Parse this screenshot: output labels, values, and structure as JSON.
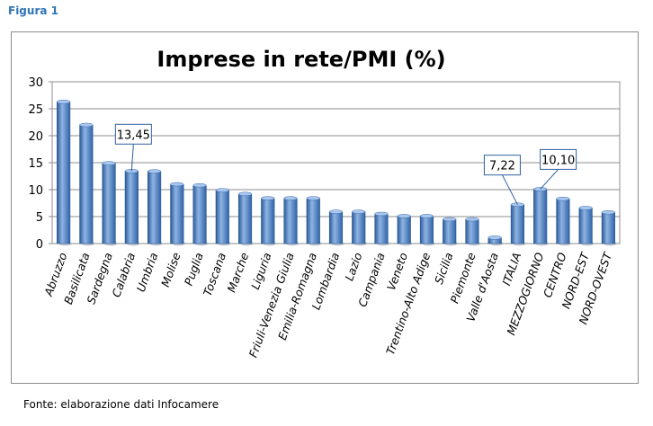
{
  "figure_label": "Figura 1",
  "source_note": "Fonte: elaborazione dati Infocamere",
  "chart_data": {
    "type": "bar",
    "title": "Imprese in rete/PMI (%)",
    "xlabel": "",
    "ylabel": "",
    "ylim": [
      0,
      30
    ],
    "yticks": [
      0,
      5,
      10,
      15,
      20,
      25,
      30
    ],
    "grid": true,
    "legend": "none",
    "bar_color": "#4a7fc1",
    "categories": [
      "Abruzzo",
      "Basilicata",
      "Sardegna",
      "Calabria",
      "Umbria",
      "Molise",
      "Puglia",
      "Toscana",
      "Marche",
      "Liguria",
      "Friuli-Venezia Giulia",
      "Emilia-Romagna",
      "Lombardia",
      "Lazio",
      "Campania",
      "Veneto",
      "Trentino-Alto Adige",
      "Sicilia",
      "Piemonte",
      "Valle d'Aosta",
      "ITALIA",
      "MEZZOGIORNO",
      "CENTRO",
      "NORD-EST",
      "NORD-OVEST"
    ],
    "values": [
      26.3,
      22.0,
      14.9,
      13.45,
      13.4,
      11.0,
      10.8,
      9.9,
      9.2,
      8.4,
      8.4,
      8.4,
      5.9,
      5.9,
      5.5,
      5.1,
      5.1,
      4.5,
      4.5,
      1.1,
      7.22,
      10.1,
      8.3,
      6.6,
      5.8
    ],
    "annotations": [
      {
        "category": "Calabria",
        "text": "13,45"
      },
      {
        "category": "ITALIA",
        "text": "7,22"
      },
      {
        "category": "MEZZOGIORNO",
        "text": "10,10"
      }
    ]
  }
}
